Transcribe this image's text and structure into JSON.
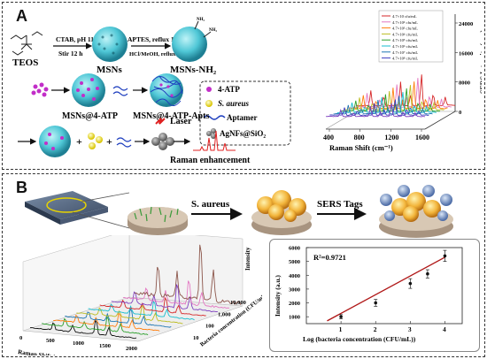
{
  "panelA": {
    "letter": "A",
    "teos": "TEOS",
    "msns": "MSNs",
    "msns_nh2": "MSNs-NH₂",
    "step1_top": "CTAB, pH 11",
    "step1_bottom": "Stir 12 h",
    "step2_top": "APTES, reflux 12 h",
    "step2_bottom": "HCl/MeOH, reflux 24 h",
    "nh2_label": "NH₂",
    "msns_4atp": "MSNs@4-ATP",
    "msns_4atp_apts": "MSNs@4-ATP-Apts",
    "raman_enh": "Raman enhancement",
    "laser": "Laser",
    "legend": {
      "atp": "4-ATP",
      "saureus": "S. aureus",
      "aptamer": "Aptamer",
      "agnfs": "AgNFs@SiO₂"
    }
  },
  "chartA": {
    "xlabel": "Raman Shift (cm⁻¹)",
    "ylabel": "SERS Intensity (a.u.)",
    "xticks": [
      "400",
      "800",
      "1200",
      "1600"
    ],
    "yticks": [
      "0",
      "8000",
      "16000",
      "24000"
    ],
    "legend": [
      "4.7×10 cfu/mL",
      "4.7×10² cfu/mL",
      "4.7×10³ cfu/mL",
      "4.7×10⁴ cfu/mL",
      "4.7×10⁵ cfu/mL",
      "4.7×10⁶ cfu/mL",
      "4.7×10⁷ cfu/mL",
      "4.7×10⁸ cfu/mL"
    ],
    "colors": [
      "#d62728",
      "#e377c2",
      "#ff7f0e",
      "#bcbd22",
      "#2ca02c",
      "#17becf",
      "#1f77b4",
      "#3f3fbf",
      "#7f3fbf"
    ]
  },
  "panelB": {
    "letter": "B",
    "saureus": "S. aureus",
    "sers_tags": "SERS Tags"
  },
  "chart3d": {
    "zlabel": "Intensity",
    "xlabel": "Raman Shift (cm⁻¹)",
    "ylabel": "Bacteria concentration (CFU/mL)",
    "xticks": [
      "0",
      "500",
      "1000",
      "1500",
      "2000"
    ],
    "yticks": [
      "10",
      "100",
      "1,000",
      "10,000"
    ],
    "colors": [
      "#111111",
      "#2ca02c",
      "#ff7f0e",
      "#1f77b4",
      "#bcbd22",
      "#17becf",
      "#d62728",
      "#7f3fbf",
      "#e377c2",
      "#8c564b"
    ]
  },
  "chart_data": {
    "type": "scatter",
    "r2_label": "R²=0.9721",
    "xlabel": "Log (bacteria concentration (CFU/mL))",
    "ylabel": "Intensity (a.u.)",
    "xticks": [
      "1",
      "2",
      "3",
      "4"
    ],
    "yticks": [
      "1000",
      "2000",
      "3000",
      "4000",
      "5000",
      "6000"
    ],
    "xlim": [
      0,
      4.5
    ],
    "ylim": [
      500,
      6000
    ],
    "x": [
      1,
      2,
      3,
      3.5,
      4
    ],
    "y": [
      1000,
      2000,
      3400,
      4100,
      5400
    ],
    "err": [
      150,
      250,
      350,
      300,
      400
    ],
    "fit": {
      "x": [
        0.6,
        4
      ],
      "y": [
        700,
        5300
      ]
    }
  }
}
